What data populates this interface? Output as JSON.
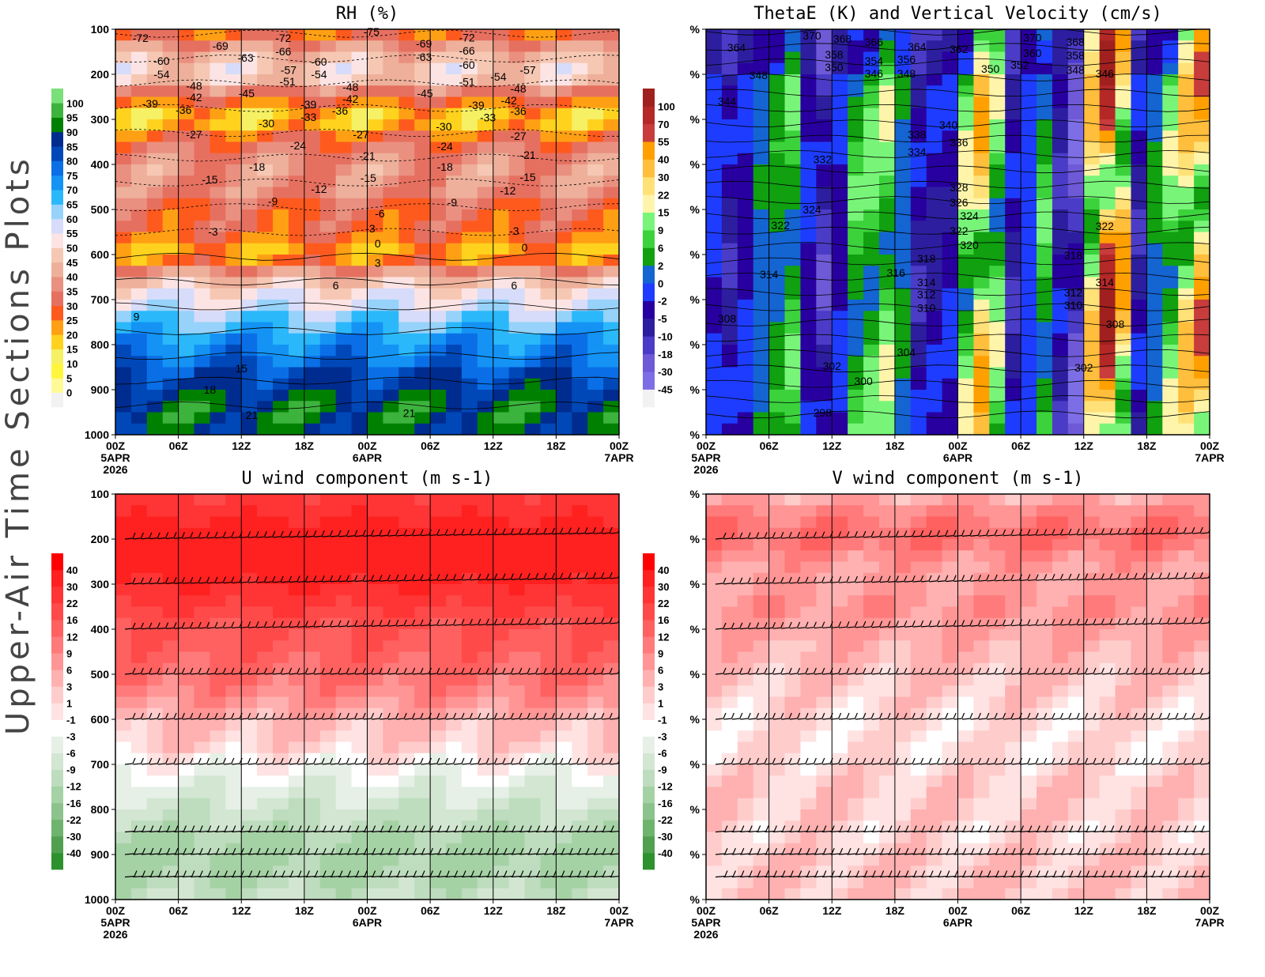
{
  "side_title": "Upper-Air Time Sections Plots",
  "x_ticks": [
    {
      "hour": 0,
      "l1": "00Z",
      "l2": "5APR",
      "l3": "2026"
    },
    {
      "hour": 6,
      "l1": "06Z",
      "l2": "",
      "l3": ""
    },
    {
      "hour": 12,
      "l1": "12Z",
      "l2": "",
      "l3": ""
    },
    {
      "hour": 18,
      "l1": "18Z",
      "l2": "",
      "l3": ""
    },
    {
      "hour": 24,
      "l1": "00Z",
      "l2": "6APR",
      "l3": ""
    },
    {
      "hour": 30,
      "l1": "06Z",
      "l2": "",
      "l3": ""
    },
    {
      "hour": 36,
      "l1": "12Z",
      "l2": "",
      "l3": ""
    },
    {
      "hour": 42,
      "l1": "18Z",
      "l2": "",
      "l3": ""
    },
    {
      "hour": 48,
      "l1": "00Z",
      "l2": "7APR",
      "l3": ""
    }
  ],
  "y_ticks_left": [
    "100",
    "200",
    "300",
    "400",
    "500",
    "600",
    "700",
    "800",
    "900",
    "1000"
  ],
  "y_tick_right": "%",
  "chart_data": [
    {
      "type": "heatmap",
      "title": "RH (%)",
      "xlim_hours": [
        0,
        48
      ],
      "ylim_hPa": [
        100,
        1000
      ],
      "colorbar": {
        "labels": [
          "0",
          "5",
          "10",
          "15",
          "20",
          "25",
          "30",
          "35",
          "40",
          "45",
          "50",
          "55",
          "60",
          "65",
          "70",
          "75",
          "80",
          "85",
          "90",
          "95",
          "100"
        ],
        "thresholds": [
          0,
          5,
          10,
          15,
          20,
          25,
          30,
          35,
          40,
          45,
          50,
          55,
          60,
          65,
          70,
          75,
          80,
          85,
          90,
          95,
          100
        ],
        "colors": [
          "#f2f2f2",
          "#fffa96",
          "#fff53c",
          "#f5f064",
          "#ffd21e",
          "#ffa014",
          "#ff5a1e",
          "#e67060",
          "#ea9080",
          "#eeb09a",
          "#f6c8b4",
          "#fde4e4",
          "#d6dcfa",
          "#96d2fa",
          "#2ab8fa",
          "#1493f5",
          "#0a6fe6",
          "#0048b8",
          "#002c8f",
          "#008000",
          "#3cb33c",
          "#7ae07a"
        ]
      },
      "profile_levels_hPa": [
        100,
        150,
        200,
        250,
        300,
        350,
        400,
        450,
        500,
        550,
        600,
        650,
        700,
        750,
        800,
        850,
        900,
        950,
        1000
      ],
      "profile_values": [
        25,
        42,
        52,
        30,
        16,
        32,
        40,
        38,
        30,
        30,
        18,
        45,
        55,
        65,
        74,
        80,
        86,
        92,
        86
      ],
      "contour_labels": [
        [
          2.4,
          119,
          "-72"
        ],
        [
          10,
          137,
          "-69"
        ],
        [
          12.4,
          163,
          "-63"
        ],
        [
          16,
          119,
          "-72"
        ],
        [
          16,
          149,
          "-66"
        ],
        [
          24.4,
          105,
          "-75"
        ],
        [
          29.4,
          132,
          "-69"
        ],
        [
          29.4,
          161,
          "-63"
        ],
        [
          33.5,
          118,
          "-72"
        ],
        [
          33.5,
          147,
          "-66"
        ],
        [
          33.5,
          179,
          "-60"
        ],
        [
          39.3,
          190,
          "-57"
        ],
        [
          4.4,
          170,
          "-60"
        ],
        [
          4.4,
          200,
          "-54"
        ],
        [
          16.5,
          190,
          "-57"
        ],
        [
          16.4,
          216,
          "-51"
        ],
        [
          19.4,
          172,
          "-60"
        ],
        [
          19.4,
          200,
          "-54"
        ],
        [
          33.5,
          217,
          "-51"
        ],
        [
          36.5,
          205,
          "-54"
        ],
        [
          7.5,
          225,
          "-48"
        ],
        [
          7.5,
          251,
          "-42"
        ],
        [
          12.5,
          242,
          "-45"
        ],
        [
          22.4,
          228,
          "-48"
        ],
        [
          22.4,
          254,
          "-42"
        ],
        [
          29.5,
          242,
          "-45"
        ],
        [
          38.4,
          232,
          "-48"
        ],
        [
          37.5,
          258,
          "-42"
        ],
        [
          3.3,
          265,
          "-39"
        ],
        [
          6.5,
          279,
          "-36"
        ],
        [
          18.4,
          267,
          "-39"
        ],
        [
          21.4,
          281,
          "-36"
        ],
        [
          18.4,
          295,
          "-33"
        ],
        [
          34.4,
          268,
          "-39"
        ],
        [
          35.5,
          296,
          "-33"
        ],
        [
          38.4,
          282,
          "-36"
        ],
        [
          14.4,
          309,
          "-30"
        ],
        [
          31.3,
          316,
          "-30"
        ],
        [
          7.5,
          333,
          "-27"
        ],
        [
          23.4,
          333,
          "-27"
        ],
        [
          38.4,
          337,
          "-27"
        ],
        [
          17.4,
          358,
          "-24"
        ],
        [
          31.4,
          360,
          "-24"
        ],
        [
          24,
          381,
          "-21"
        ],
        [
          39.3,
          379,
          "-21"
        ],
        [
          13.5,
          405,
          "-18"
        ],
        [
          31.4,
          405,
          "-18"
        ],
        [
          9,
          433,
          "-15"
        ],
        [
          24.1,
          430,
          "-15"
        ],
        [
          39.3,
          428,
          "-15"
        ],
        [
          19.4,
          454,
          "-12"
        ],
        [
          37.4,
          458,
          "-12"
        ],
        [
          15,
          482,
          "-9"
        ],
        [
          32.1,
          484,
          "-9"
        ],
        [
          25.2,
          509,
          "-6"
        ],
        [
          9.3,
          549,
          "-3"
        ],
        [
          24.3,
          542,
          "-3"
        ],
        [
          38,
          547,
          "-3"
        ],
        [
          25,
          575,
          "0"
        ],
        [
          39,
          584,
          "0"
        ],
        [
          25,
          618,
          "3"
        ],
        [
          21,
          668,
          "6"
        ],
        [
          38,
          668,
          "6"
        ],
        [
          2,
          738,
          "9"
        ],
        [
          12,
          853,
          "15"
        ],
        [
          9,
          900,
          "18"
        ],
        [
          13,
          956,
          "21"
        ],
        [
          28,
          952,
          "21"
        ]
      ]
    },
    {
      "type": "heatmap",
      "title": "ThetaE (K) and Vertical Velocity (cm/s)",
      "xlim_hours": [
        0,
        48
      ],
      "ylim_hPa": [
        100,
        1000
      ],
      "colorbar": {
        "labels": [
          "-45",
          "-30",
          "-18",
          "-10",
          "-5",
          "-2",
          "0",
          "2",
          "6",
          "9",
          "15",
          "22",
          "30",
          "40",
          "55",
          "70",
          "100"
        ],
        "thresholds": [
          -45,
          -30,
          -18,
          -10,
          -5,
          -2,
          0,
          2,
          6,
          9,
          15,
          22,
          30,
          40,
          55,
          70,
          100
        ],
        "colors": [
          "#f2f2f2",
          "#7d6ee6",
          "#6e5ad7",
          "#4b3cc8",
          "#2d1ea0",
          "#2800a0",
          "#1e3cff",
          "#1464d2",
          "#10a010",
          "#3cd23c",
          "#78f578",
          "#fff5aa",
          "#ffe178",
          "#ffbe3c",
          "#ffa000",
          "#c83c3c",
          "#b42828",
          "#a02020"
        ]
      },
      "vertical_velocity_by_time_hours": [
        0,
        3,
        6,
        9,
        12,
        15,
        18,
        21,
        24,
        27,
        30,
        33,
        36,
        39,
        42,
        45,
        48
      ],
      "vertical_velocity_values": [
        6,
        -10,
        2,
        9,
        -18,
        9,
        15,
        -10,
        -5,
        40,
        -10,
        9,
        -30,
        100,
        -10,
        15,
        55
      ],
      "contour_labels": [
        [
          2.9,
          140,
          "364"
        ],
        [
          10.1,
          114,
          "370"
        ],
        [
          13,
          121,
          "368"
        ],
        [
          16,
          128,
          "366"
        ],
        [
          20.1,
          139,
          "364"
        ],
        [
          24.1,
          144,
          "362"
        ],
        [
          31.1,
          118,
          "370"
        ],
        [
          35.2,
          128,
          "368"
        ],
        [
          12.2,
          156,
          "358"
        ],
        [
          16,
          170,
          "354"
        ],
        [
          19.1,
          167,
          "356"
        ],
        [
          31.1,
          153,
          "360"
        ],
        [
          35.2,
          158,
          "358"
        ],
        [
          12.2,
          184,
          "350"
        ],
        [
          16,
          198,
          "346"
        ],
        [
          19.1,
          198,
          "348"
        ],
        [
          27.1,
          188,
          "350"
        ],
        [
          29.9,
          179,
          "352"
        ],
        [
          35.2,
          190,
          "348"
        ],
        [
          5,
          202,
          "348"
        ],
        [
          38,
          198,
          "346"
        ],
        [
          2,
          260,
          "344"
        ],
        [
          20.1,
          333,
          "338"
        ],
        [
          23.1,
          312,
          "340"
        ],
        [
          24.1,
          351,
          "336"
        ],
        [
          20.1,
          372,
          "334"
        ],
        [
          11.1,
          389,
          "332"
        ],
        [
          24.1,
          451,
          "328"
        ],
        [
          24.1,
          484,
          "326"
        ],
        [
          25.1,
          514,
          "324"
        ],
        [
          10.1,
          500,
          "324"
        ],
        [
          7.1,
          535,
          "322"
        ],
        [
          24.1,
          547,
          "322"
        ],
        [
          25.1,
          579,
          "320"
        ],
        [
          38,
          537,
          "322"
        ],
        [
          21,
          609,
          "318"
        ],
        [
          35,
          602,
          "318"
        ],
        [
          18.1,
          640,
          "316"
        ],
        [
          6,
          644,
          "314"
        ],
        [
          21,
          661,
          "314"
        ],
        [
          38,
          661,
          "314"
        ],
        [
          21,
          689,
          "312"
        ],
        [
          35,
          684,
          "312"
        ],
        [
          21,
          718,
          "310"
        ],
        [
          35,
          712,
          "310"
        ],
        [
          2,
          742,
          "308"
        ],
        [
          39,
          754,
          "308"
        ],
        [
          19.1,
          817,
          "304"
        ],
        [
          12,
          847,
          "302"
        ],
        [
          36,
          851,
          "302"
        ],
        [
          15,
          881,
          "300"
        ],
        [
          11.1,
          951,
          "298"
        ]
      ]
    },
    {
      "type": "heatmap",
      "title": "U wind component (m s-1)",
      "xlim_hours": [
        0,
        48
      ],
      "ylim_hPa": [
        100,
        1000
      ],
      "colorbar": {
        "labels": [
          "-40",
          "-30",
          "-22",
          "-16",
          "-12",
          "-9",
          "-6",
          "-3",
          "-1",
          "1",
          "3",
          "6",
          "9",
          "12",
          "16",
          "22",
          "30",
          "40"
        ],
        "thresholds": [
          -40,
          -30,
          -22,
          -16,
          -12,
          -9,
          -6,
          -3,
          -1,
          1,
          3,
          6,
          9,
          12,
          16,
          22,
          30,
          40
        ],
        "colors": [
          "#2d912d",
          "#50a050",
          "#6eb46e",
          "#8cc38c",
          "#a5d2a5",
          "#bedcbe",
          "#d2e6d2",
          "#e6f0e6",
          "#ffffff",
          "#ffe2e2",
          "#ffcccc",
          "#ffb0b0",
          "#ff9595",
          "#ff7a7a",
          "#ff6060",
          "#ff4a4a",
          "#ff3535",
          "#ff2020",
          "#ff0000"
        ]
      },
      "profile_levels_hPa": [
        100,
        150,
        200,
        250,
        300,
        350,
        400,
        450,
        500,
        550,
        600,
        650,
        700,
        750,
        800,
        850,
        900,
        950,
        1000
      ],
      "profile_values": [
        22,
        30,
        36,
        38,
        30,
        22,
        16,
        14,
        12,
        9,
        4,
        1.5,
        -1.5,
        -5,
        -8,
        -11,
        -14,
        -12,
        -9
      ],
      "barb_levels_hPa": [
        200,
        300,
        400,
        500,
        600,
        700,
        850,
        900,
        950
      ]
    },
    {
      "type": "heatmap",
      "title": "V wind component (m s-1)",
      "xlim_hours": [
        0,
        48
      ],
      "ylim_hPa": [
        100,
        1000
      ],
      "colorbar": {
        "labels": [
          "-40",
          "-30",
          "-22",
          "-16",
          "-12",
          "-9",
          "-6",
          "-3",
          "-1",
          "1",
          "3",
          "6",
          "9",
          "12",
          "16",
          "22",
          "30",
          "40"
        ],
        "thresholds": [
          -40,
          -30,
          -22,
          -16,
          -12,
          -9,
          -6,
          -3,
          -1,
          1,
          3,
          6,
          9,
          12,
          16,
          22,
          30,
          40
        ],
        "colors": [
          "#2d912d",
          "#50a050",
          "#6eb46e",
          "#8cc38c",
          "#a5d2a5",
          "#bedcbe",
          "#d2e6d2",
          "#e6f0e6",
          "#ffffff",
          "#ffe2e2",
          "#ffcccc",
          "#ffb0b0",
          "#ff9595",
          "#ff7a7a",
          "#ff6060",
          "#ff4a4a",
          "#ff3535",
          "#ff2020",
          "#ff0000"
        ]
      },
      "profile_levels_hPa": [
        100,
        150,
        200,
        250,
        300,
        350,
        400,
        450,
        500,
        550,
        600,
        650,
        700,
        750,
        800,
        850,
        900,
        950,
        1000
      ],
      "profile_values": [
        4,
        10,
        12,
        7,
        6,
        8,
        6,
        4,
        3,
        1.5,
        0.5,
        0.5,
        0.5,
        2,
        2,
        1,
        2,
        2.5,
        2
      ],
      "barb_levels_hPa": [
        200,
        300,
        400,
        500,
        600,
        700,
        850,
        900,
        950
      ]
    }
  ]
}
